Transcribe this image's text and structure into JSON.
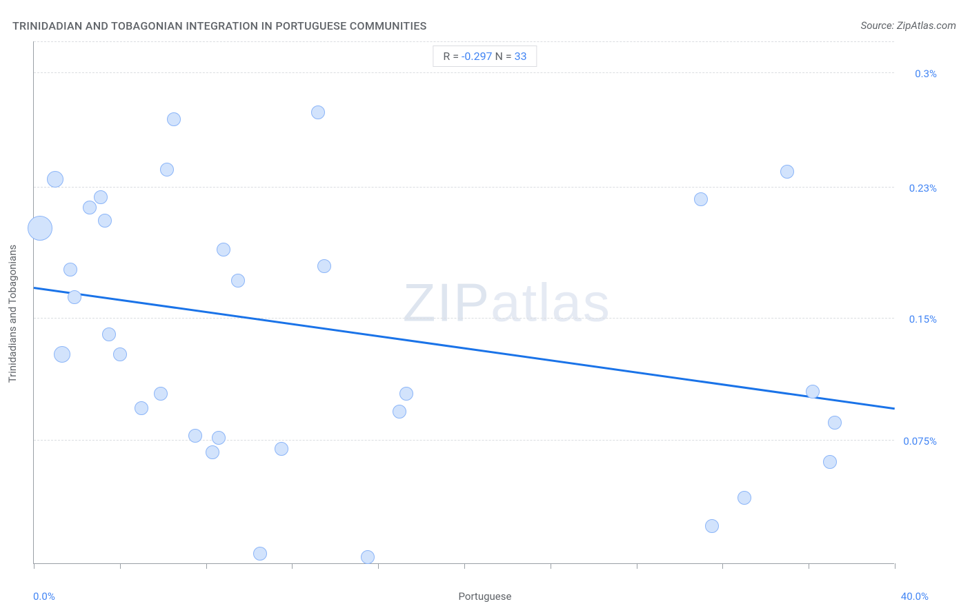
{
  "title": "TRINIDADIAN AND TOBAGONIAN INTEGRATION IN PORTUGUESE COMMUNITIES",
  "source_label": "Source: ZipAtlas.com",
  "watermark_a": "ZIP",
  "watermark_b": "atlas",
  "stats": {
    "r_label": "R = ",
    "r_value": "-0.297",
    "n_label": "   N = ",
    "n_value": "33"
  },
  "axes": {
    "x_label": "Portuguese",
    "x_min_label": "0.0%",
    "x_max_label": "40.0%",
    "y_label": "Trinidadians and Tobagonians"
  },
  "chart": {
    "type": "scatter",
    "xlim": [
      0,
      40
    ],
    "ylim": [
      0,
      0.32
    ],
    "x_ticks": [
      0,
      4,
      8,
      12,
      16,
      20,
      24,
      28,
      32,
      36,
      40
    ],
    "y_gridlines": [
      0.075,
      0.15,
      0.23,
      0.3
    ],
    "y_tick_labels": [
      "0.075%",
      "0.15%",
      "0.23%",
      "0.3%"
    ],
    "background_color": "#ffffff",
    "grid_color": "#dadce0",
    "axis_color": "#9aa0a6",
    "point_fill": "#d2e3fc",
    "point_stroke": "#8ab4f8",
    "point_stroke_width": 1.2,
    "base_point_radius": 10,
    "trend_line": {
      "x1": 0,
      "y1": 0.168,
      "x2": 40,
      "y2": 0.094,
      "color": "#1a73e8",
      "width": 3
    },
    "points": [
      {
        "x": 0.3,
        "y": 0.205,
        "r": 18
      },
      {
        "x": 1.0,
        "y": 0.235,
        "r": 12
      },
      {
        "x": 1.3,
        "y": 0.128,
        "r": 12
      },
      {
        "x": 1.7,
        "y": 0.18,
        "r": 10
      },
      {
        "x": 1.9,
        "y": 0.163,
        "r": 10
      },
      {
        "x": 2.6,
        "y": 0.218,
        "r": 10
      },
      {
        "x": 3.1,
        "y": 0.224,
        "r": 10
      },
      {
        "x": 3.3,
        "y": 0.21,
        "r": 10
      },
      {
        "x": 3.5,
        "y": 0.14,
        "r": 10
      },
      {
        "x": 4.0,
        "y": 0.128,
        "r": 10
      },
      {
        "x": 5.0,
        "y": 0.095,
        "r": 10
      },
      {
        "x": 5.9,
        "y": 0.104,
        "r": 10
      },
      {
        "x": 6.2,
        "y": 0.241,
        "r": 10
      },
      {
        "x": 6.5,
        "y": 0.272,
        "r": 10
      },
      {
        "x": 7.5,
        "y": 0.078,
        "r": 10
      },
      {
        "x": 8.3,
        "y": 0.068,
        "r": 10
      },
      {
        "x": 8.6,
        "y": 0.077,
        "r": 10
      },
      {
        "x": 8.8,
        "y": 0.192,
        "r": 10
      },
      {
        "x": 9.5,
        "y": 0.173,
        "r": 10
      },
      {
        "x": 10.5,
        "y": 0.006,
        "r": 10
      },
      {
        "x": 11.5,
        "y": 0.07,
        "r": 10
      },
      {
        "x": 13.2,
        "y": 0.276,
        "r": 10
      },
      {
        "x": 13.5,
        "y": 0.182,
        "r": 10
      },
      {
        "x": 15.5,
        "y": 0.004,
        "r": 10
      },
      {
        "x": 17.0,
        "y": 0.093,
        "r": 10
      },
      {
        "x": 17.3,
        "y": 0.104,
        "r": 10
      },
      {
        "x": 31.0,
        "y": 0.223,
        "r": 10
      },
      {
        "x": 31.5,
        "y": 0.023,
        "r": 10
      },
      {
        "x": 33.0,
        "y": 0.04,
        "r": 10
      },
      {
        "x": 35.0,
        "y": 0.24,
        "r": 10
      },
      {
        "x": 36.2,
        "y": 0.105,
        "r": 10
      },
      {
        "x": 37.0,
        "y": 0.062,
        "r": 10
      },
      {
        "x": 37.2,
        "y": 0.086,
        "r": 10
      }
    ]
  }
}
